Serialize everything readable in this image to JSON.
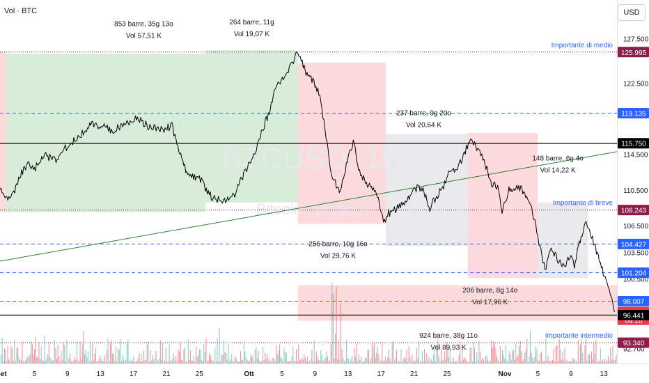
{
  "header": {
    "symbol_label": "Vol · BTC",
    "currency_button": "USD"
  },
  "watermark": {
    "symbol": "BTCUSD, 1h",
    "name": "Bitcoin / Dollaro"
  },
  "chart_data": {
    "type": "line",
    "ylim": [
      91000,
      129500
    ],
    "xlim": [
      0,
      1794
    ],
    "y_ticks": [
      {
        "v": 127500,
        "label": "127.500"
      },
      {
        "v": 122500,
        "label": "122.500"
      },
      {
        "v": 114500,
        "label": "114.500"
      },
      {
        "v": 110500,
        "label": "110.500"
      },
      {
        "v": 106500,
        "label": "106.500"
      },
      {
        "v": 103500,
        "label": "103.500"
      },
      {
        "v": 100500,
        "label": "100.500"
      },
      {
        "v": 92700,
        "label": "92.700"
      }
    ],
    "x_ticks": [
      {
        "h": 4,
        "label": "Set",
        "bold": true
      },
      {
        "h": 100,
        "label": "5"
      },
      {
        "h": 196,
        "label": "9"
      },
      {
        "h": 292,
        "label": "13"
      },
      {
        "h": 388,
        "label": "17"
      },
      {
        "h": 484,
        "label": "21"
      },
      {
        "h": 580,
        "label": "25"
      },
      {
        "h": 724,
        "label": "Ott",
        "bold": true
      },
      {
        "h": 820,
        "label": "5"
      },
      {
        "h": 916,
        "label": "9"
      },
      {
        "h": 1012,
        "label": "13"
      },
      {
        "h": 1108,
        "label": "17"
      },
      {
        "h": 1204,
        "label": "21"
      },
      {
        "h": 1300,
        "label": "25"
      },
      {
        "h": 1468,
        "label": "Nov",
        "bold": true
      },
      {
        "h": 1564,
        "label": "5"
      },
      {
        "h": 1660,
        "label": "9"
      },
      {
        "h": 1756,
        "label": "13"
      }
    ],
    "series": [
      {
        "values": [
          [
            0,
            110800
          ],
          [
            20,
            109500
          ],
          [
            40,
            110200
          ],
          [
            60,
            112300
          ],
          [
            80,
            113500
          ],
          [
            100,
            112800
          ],
          [
            130,
            114500
          ],
          [
            160,
            113800
          ],
          [
            190,
            115200
          ],
          [
            230,
            116500
          ],
          [
            270,
            118000
          ],
          [
            300,
            117600
          ],
          [
            330,
            117200
          ],
          [
            360,
            117900
          ],
          [
            400,
            118600
          ],
          [
            430,
            117700
          ],
          [
            460,
            117500
          ],
          [
            480,
            117300
          ],
          [
            500,
            117800
          ],
          [
            520,
            115000
          ],
          [
            540,
            112800
          ],
          [
            560,
            112000
          ],
          [
            580,
            111800
          ],
          [
            600,
            110500
          ],
          [
            620,
            109500
          ],
          [
            650,
            109300
          ],
          [
            680,
            109800
          ],
          [
            700,
            111500
          ],
          [
            720,
            113000
          ],
          [
            740,
            114500
          ],
          [
            760,
            116800
          ],
          [
            780,
            119000
          ],
          [
            800,
            121800
          ],
          [
            830,
            123500
          ],
          [
            850,
            124800
          ],
          [
            866,
            126300
          ],
          [
            876,
            125000
          ],
          [
            890,
            123800
          ],
          [
            910,
            122800
          ],
          [
            930,
            121000
          ],
          [
            945,
            117500
          ],
          [
            960,
            113000
          ],
          [
            975,
            111300
          ],
          [
            990,
            110200
          ],
          [
            1010,
            114000
          ],
          [
            1030,
            116000
          ],
          [
            1040,
            113000
          ],
          [
            1060,
            111500
          ],
          [
            1080,
            110800
          ],
          [
            1100,
            109800
          ],
          [
            1115,
            106700
          ],
          [
            1130,
            107900
          ],
          [
            1150,
            108300
          ],
          [
            1170,
            108800
          ],
          [
            1190,
            109800
          ],
          [
            1210,
            110700
          ],
          [
            1230,
            110500
          ],
          [
            1250,
            108500
          ],
          [
            1270,
            109800
          ],
          [
            1290,
            111000
          ],
          [
            1310,
            112800
          ],
          [
            1330,
            113000
          ],
          [
            1350,
            114500
          ],
          [
            1365,
            116000
          ],
          [
            1380,
            115500
          ],
          [
            1395,
            114800
          ],
          [
            1410,
            113500
          ],
          [
            1430,
            111200
          ],
          [
            1450,
            110700
          ],
          [
            1460,
            108200
          ],
          [
            1480,
            110600
          ],
          [
            1500,
            110800
          ],
          [
            1520,
            110500
          ],
          [
            1540,
            109000
          ],
          [
            1555,
            107000
          ],
          [
            1570,
            104000
          ],
          [
            1585,
            101500
          ],
          [
            1600,
            103800
          ],
          [
            1620,
            102800
          ],
          [
            1640,
            102000
          ],
          [
            1660,
            103000
          ],
          [
            1670,
            101800
          ],
          [
            1690,
            105500
          ],
          [
            1705,
            106800
          ],
          [
            1720,
            105200
          ],
          [
            1740,
            103000
          ],
          [
            1760,
            100600
          ],
          [
            1775,
            98500
          ],
          [
            1787,
            96800
          ]
        ]
      }
    ],
    "horizontal_levels": [
      {
        "value": 125995,
        "label": "125.995",
        "style": "dotted",
        "color": "#7b1a3a"
      },
      {
        "value": 119135,
        "label": "119.135",
        "style": "dashed",
        "color": "#2962ff"
      },
      {
        "value": 115750,
        "label": "115.750",
        "style": "solid",
        "color": "#000000"
      },
      {
        "value": 108243,
        "label": "108.243",
        "style": "dotted",
        "color": "#7b1a3a"
      },
      {
        "value": 104427,
        "label": "104.427",
        "style": "dashed",
        "color": "#2962ff"
      },
      {
        "value": 101204,
        "label": "101.204",
        "style": "dashed",
        "color": "#2962ff"
      },
      {
        "value": 98007,
        "label": "98.007",
        "style": "dashed",
        "color": "#2962ff"
      },
      {
        "value": 96441,
        "label": "96.441",
        "style": "solid",
        "color": "#000000"
      },
      {
        "value": 93340,
        "label": "93.340",
        "style": "dotted",
        "color": "#7b1a3a"
      }
    ],
    "price_tags": [
      {
        "value": 125995,
        "label": "125.995",
        "bg": "#8f1d4a"
      },
      {
        "value": 119135,
        "label": "119.135",
        "bg": "#2962ff"
      },
      {
        "value": 115750,
        "label": "115.750",
        "bg": "#000000"
      },
      {
        "value": 108243,
        "label": "108.243",
        "bg": "#8f1d4a"
      },
      {
        "value": 104427,
        "label": "104.427",
        "bg": "#2962ff"
      },
      {
        "value": 101204,
        "label": "101.204",
        "bg": "#2962ff"
      },
      {
        "value": 98007,
        "label": "98.007",
        "bg": "#2962ff"
      },
      {
        "value": 96783,
        "label": "96.783",
        "sub": "09:10",
        "bg": "#f23645"
      },
      {
        "value": 96441,
        "label": "96.441",
        "bg": "#000000"
      },
      {
        "value": 93340,
        "label": "93.340",
        "bg": "#8f1d4a"
      }
    ],
    "level_notes": [
      {
        "value": 125995,
        "text": "Importante di medio"
      },
      {
        "value": 108243,
        "text": "Importante di breve"
      },
      {
        "value": 93340,
        "text": "Importante intermedio"
      }
    ],
    "trendline": {
      "from": [
        0,
        102500
      ],
      "to": [
        1794,
        114800
      ],
      "color": "#2e7d32"
    },
    "ranges": [
      {
        "h0": -40,
        "h1": 18,
        "y0": 126000,
        "y1": 108000,
        "color": "red"
      },
      {
        "h0": 18,
        "h1": 598,
        "y0": 125800,
        "y1": 108000,
        "color": "green"
      },
      {
        "h0": 598,
        "h1": 866,
        "y0": 126200,
        "y1": 109100,
        "color": "green"
      },
      {
        "h0": 866,
        "h1": 1122,
        "y0": 124800,
        "y1": 106700,
        "color": "red"
      },
      {
        "h0": 1122,
        "h1": 1360,
        "y0": 116800,
        "y1": 104200,
        "color": "gray"
      },
      {
        "h0": 1360,
        "h1": 1563,
        "y0": 116900,
        "y1": 100600,
        "color": "red"
      },
      {
        "h0": 1563,
        "h1": 1710,
        "y0": 109100,
        "y1": 100600,
        "color": "gray"
      },
      {
        "h0": 866,
        "h1": 1794,
        "y0": 99800,
        "y1": 95800,
        "color": "red"
      }
    ],
    "annotations": [
      {
        "h": 418,
        "v": 128900,
        "line1": "853 barre, 35g 13o",
        "line2": "Vol 57,51 K"
      },
      {
        "h": 732,
        "v": 129100,
        "line1": "264 barre, 11g",
        "line2": "Vol 19,07 K"
      },
      {
        "h": 1232,
        "v": 118900,
        "line1": "237 barre, 9g 20o",
        "line2": "Vol 20,64 K"
      },
      {
        "h": 1622,
        "v": 113800,
        "line1": "148 barre, 6g 4o",
        "line2": "Vol 14,22 K"
      },
      {
        "h": 983,
        "v": 104200,
        "line1": "256 barre, 10g 16o",
        "line2": "Vol 29,76 K"
      },
      {
        "h": 1425,
        "v": 99000,
        "line1": "206 barre, 8g 14o",
        "line2": "Vol 17,96 K"
      },
      {
        "h": 1304,
        "v": 93900,
        "line1": "924 barre, 38g 11o",
        "line2": "Vol 89,93 K"
      }
    ]
  },
  "colors": {
    "range_green": "rgba(76,175,80,0.22)",
    "range_red": "rgba(242,54,69,0.18)",
    "range_gray": "rgba(149,152,161,0.20)",
    "price_line": "#000000",
    "volume_up": "rgba(38,166,154,0.55)",
    "volume_down": "rgba(242,54,69,0.55)"
  }
}
